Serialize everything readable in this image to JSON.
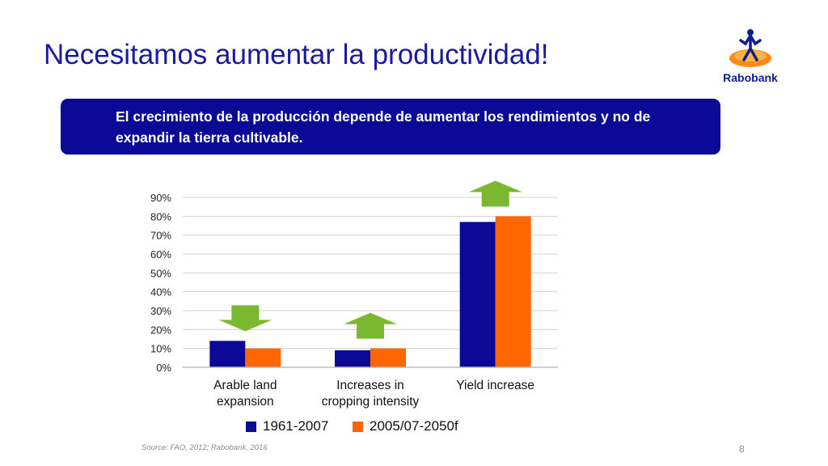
{
  "slide": {
    "title": "Necesitamos aumentar la productividad!",
    "banner_text": "El crecimiento de la producción depende de aumentar los rendimientos y no de expandir la tierra cultivable.",
    "source": "Source: FAO, 2012; Rabobank, 2016",
    "page_number": "8",
    "logo": {
      "text": "Rabobank",
      "icon": "rabobank-figure-icon"
    }
  },
  "colors": {
    "title": "#1a1a9e",
    "banner": "#0a0a96",
    "series1": "#0a0a96",
    "series2": "#ff6600",
    "arrow": "#7ab830"
  },
  "chart_data": {
    "type": "bar",
    "title": "",
    "xlabel": "",
    "ylabel": "",
    "categories": [
      [
        "Arable land",
        "expansion"
      ],
      [
        "Increases in",
        "cropping intensity"
      ],
      [
        "Yield increase"
      ]
    ],
    "series": [
      {
        "name": "1961-2007",
        "values": [
          14,
          9,
          77
        ]
      },
      {
        "name": "2005/07-2050f",
        "values": [
          10,
          10,
          80
        ]
      }
    ],
    "ylim": [
      0,
      90
    ],
    "yticks": [
      "0%",
      "10%",
      "20%",
      "30%",
      "40%",
      "50%",
      "60%",
      "70%",
      "80%",
      "90%"
    ],
    "grid": true,
    "legend_position": "bottom",
    "arrows": [
      "down",
      "up",
      "up"
    ]
  }
}
